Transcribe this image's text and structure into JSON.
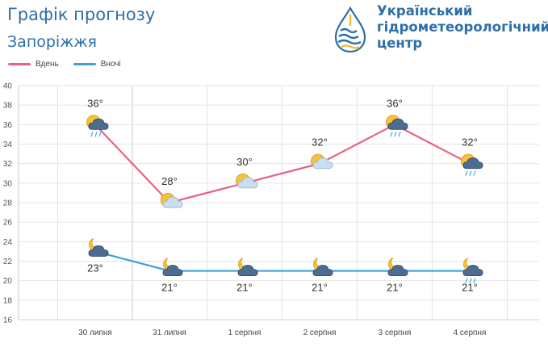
{
  "header": {
    "title": "Графік прогнозу",
    "city": "Запоріжжя",
    "org_line1": "Український",
    "org_line2": "гідрометеорологічний",
    "org_line3": "центр"
  },
  "colors": {
    "day": "#e8627f",
    "night": "#3b9fd8",
    "title": "#2d6fa8",
    "grid": "#e4e4e4"
  },
  "chart_data": {
    "type": "line",
    "categories": [
      "30 липня",
      "31 липня",
      "1 серпня",
      "2 серпня",
      "3 серпня",
      "4 серпня"
    ],
    "series": [
      {
        "name": "Вдень",
        "values": [
          36,
          28,
          30,
          32,
          36,
          32
        ],
        "labels": [
          "36°",
          "28°",
          "30°",
          "32°",
          "36°",
          "32°"
        ],
        "icons": [
          "sun-cloud-rain-icon",
          "sun-cloud-icon",
          "sun-cloud-icon",
          "sun-cloud-icon",
          "sun-cloud-rain-icon",
          "sun-cloud-rain-icon"
        ]
      },
      {
        "name": "Вночі",
        "values": [
          23,
          21,
          21,
          21,
          21,
          21
        ],
        "labels": [
          "23°",
          "21°",
          "21°",
          "21°",
          "21°",
          "21°"
        ],
        "icons": [
          "moon-cloud-icon",
          "moon-cloud-icon",
          "moon-cloud-icon",
          "moon-cloud-icon",
          "moon-cloud-icon",
          "moon-cloud-rain-icon"
        ]
      }
    ],
    "yticks": [
      16,
      18,
      20,
      22,
      24,
      26,
      28,
      30,
      32,
      34,
      36,
      38,
      40
    ],
    "ylim": [
      16,
      40
    ],
    "grid": true,
    "legend": "top-left"
  }
}
